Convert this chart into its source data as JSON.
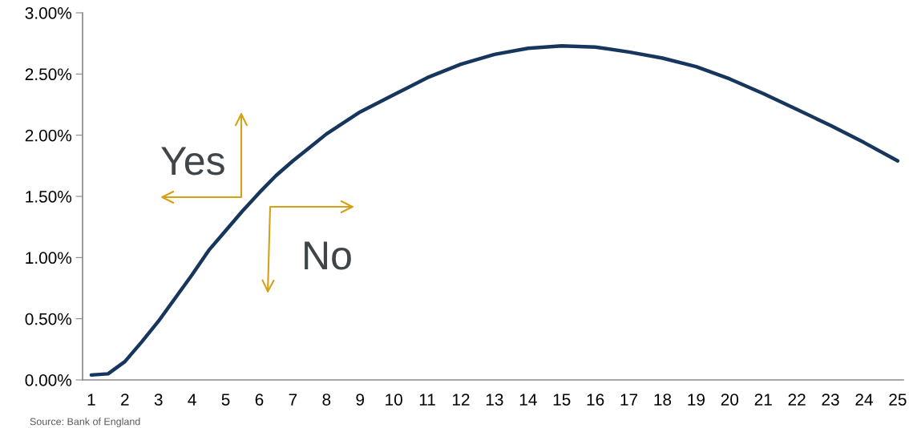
{
  "chart_data": {
    "type": "line",
    "x": [
      1,
      1.5,
      2,
      2.5,
      3,
      3.5,
      4,
      4.5,
      5,
      5.5,
      6,
      6.5,
      7,
      7.5,
      8,
      8.5,
      9,
      9.5,
      10,
      11,
      12,
      13,
      14,
      15,
      16,
      17,
      18,
      19,
      20,
      21,
      22,
      23,
      24,
      25
    ],
    "series": [
      {
        "color": "#17365d",
        "values": [
          0.04,
          0.05,
          0.15,
          0.31,
          0.48,
          0.67,
          0.86,
          1.06,
          1.22,
          1.38,
          1.53,
          1.67,
          1.79,
          1.9,
          2.01,
          2.1,
          2.19,
          2.26,
          2.33,
          2.47,
          2.58,
          2.66,
          2.71,
          2.73,
          2.72,
          2.68,
          2.63,
          2.56,
          2.46,
          2.34,
          2.21,
          2.08,
          1.94,
          1.79
        ]
      }
    ],
    "xlim": [
      0.74,
      25.17
    ],
    "xticks": [
      1,
      2,
      3,
      4,
      5,
      6,
      7,
      8,
      9,
      10,
      11,
      12,
      13,
      14,
      15,
      16,
      17,
      18,
      19,
      20,
      21,
      22,
      23,
      24,
      25
    ],
    "ylim": [
      0,
      3
    ],
    "yticks": [
      {
        "value": 0,
        "label": "0.00%"
      },
      {
        "value": 0.5,
        "label": "0.50%"
      },
      {
        "value": 1,
        "label": "1.00%"
      },
      {
        "value": 1.5,
        "label": "1.50%"
      },
      {
        "value": 2,
        "label": "2.00%"
      },
      {
        "value": 2.5,
        "label": "2.50%"
      },
      {
        "value": 3,
        "label": "3.00%"
      }
    ],
    "grid": false,
    "marker": "none",
    "line_style": "solid",
    "annotations": [
      "Yes",
      "No",
      "Source: Bank of England"
    ]
  }
}
